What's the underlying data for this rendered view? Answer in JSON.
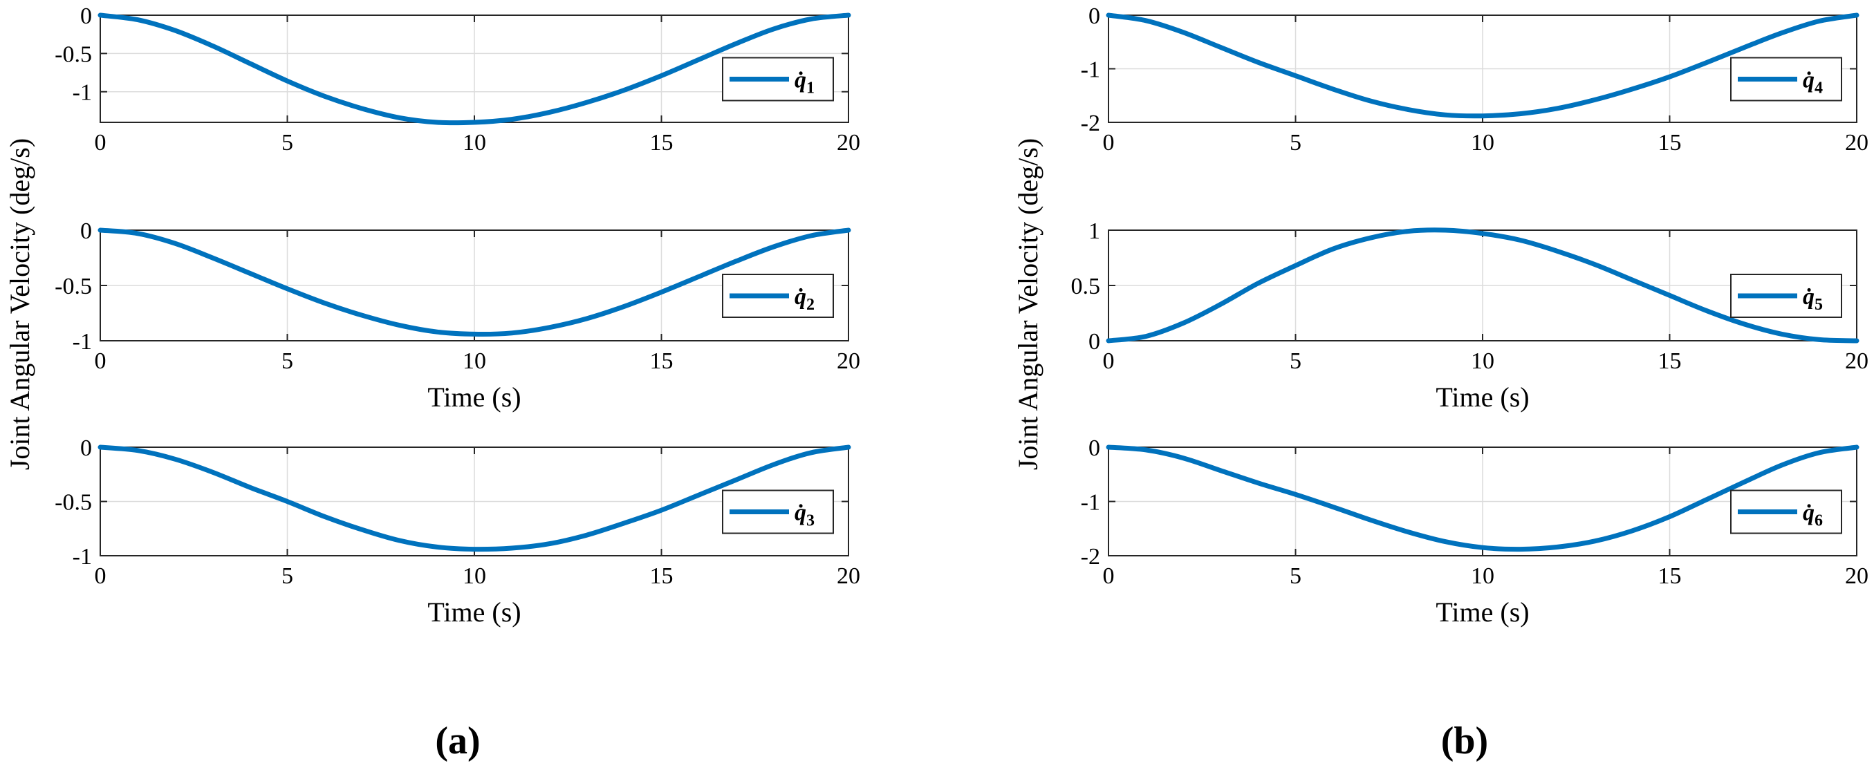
{
  "panel_labels": [
    "(a)",
    "(b)"
  ],
  "shared_ylabels": [
    "Joint Angular Velocity (deg/s)",
    "Joint Angular Velocity (deg/s)"
  ],
  "line_color": "#0072bd",
  "chart_data": [
    {
      "type": "line",
      "panel": "(a)",
      "legend_label": "q̇",
      "legend_sub": "1",
      "legend": "right",
      "xlabel": "",
      "xlim": [
        0,
        20
      ],
      "ylim": [
        -1.4,
        0
      ],
      "xticks": [
        0,
        5,
        10,
        15,
        20
      ],
      "yticks": [
        0,
        -0.5,
        -1
      ],
      "grid": true,
      "x": [
        0,
        1,
        2,
        3,
        4,
        5,
        6,
        7,
        8,
        9,
        10,
        11,
        12,
        13,
        14,
        15,
        16,
        17,
        18,
        19,
        20
      ],
      "y": [
        0,
        -0.06,
        -0.2,
        -0.4,
        -0.63,
        -0.86,
        -1.06,
        -1.22,
        -1.34,
        -1.4,
        -1.4,
        -1.36,
        -1.27,
        -1.14,
        -0.98,
        -0.79,
        -0.58,
        -0.37,
        -0.18,
        -0.05,
        0
      ]
    },
    {
      "type": "line",
      "panel": "(a)",
      "legend_label": "q̇",
      "legend_sub": "2",
      "legend": "right",
      "xlabel": "Time (s)",
      "xlim": [
        0,
        20
      ],
      "ylim": [
        -1,
        0
      ],
      "xticks": [
        0,
        5,
        10,
        15,
        20
      ],
      "yticks": [
        0,
        -0.5,
        -1
      ],
      "grid": true,
      "x": [
        0,
        1,
        2,
        3,
        4,
        5,
        6,
        7,
        8,
        9,
        10,
        11,
        12,
        13,
        14,
        15,
        16,
        17,
        18,
        19,
        20
      ],
      "y": [
        0,
        -0.03,
        -0.12,
        -0.25,
        -0.39,
        -0.53,
        -0.66,
        -0.77,
        -0.86,
        -0.92,
        -0.94,
        -0.93,
        -0.88,
        -0.8,
        -0.69,
        -0.56,
        -0.42,
        -0.28,
        -0.15,
        -0.05,
        0
      ]
    },
    {
      "type": "line",
      "panel": "(a)",
      "legend_label": "q̇",
      "legend_sub": "3",
      "legend": "right",
      "xlabel": "Time (s)",
      "xlim": [
        0,
        20
      ],
      "ylim": [
        -1,
        0
      ],
      "xticks": [
        0,
        5,
        10,
        15,
        20
      ],
      "yticks": [
        0,
        -0.5,
        -1
      ],
      "grid": true,
      "x": [
        0,
        1,
        2,
        3,
        4,
        5,
        6,
        7,
        8,
        9,
        10,
        11,
        12,
        13,
        14,
        15,
        16,
        17,
        18,
        19,
        20
      ],
      "y": [
        0,
        -0.03,
        -0.11,
        -0.23,
        -0.37,
        -0.5,
        -0.64,
        -0.76,
        -0.86,
        -0.92,
        -0.94,
        -0.93,
        -0.89,
        -0.81,
        -0.7,
        -0.58,
        -0.44,
        -0.3,
        -0.16,
        -0.05,
        0
      ]
    },
    {
      "type": "line",
      "panel": "(b)",
      "legend_label": "q̇",
      "legend_sub": "4",
      "legend": "right",
      "xlabel": "",
      "xlim": [
        0,
        20
      ],
      "ylim": [
        -2,
        0
      ],
      "xticks": [
        0,
        5,
        10,
        15,
        20
      ],
      "yticks": [
        0,
        -1,
        -2
      ],
      "grid": true,
      "x": [
        0,
        1,
        2,
        3,
        4,
        5,
        6,
        7,
        8,
        9,
        10,
        11,
        12,
        13,
        14,
        15,
        16,
        17,
        18,
        19,
        20
      ],
      "y": [
        0,
        -0.1,
        -0.32,
        -0.6,
        -0.88,
        -1.13,
        -1.38,
        -1.6,
        -1.76,
        -1.86,
        -1.88,
        -1.84,
        -1.74,
        -1.58,
        -1.38,
        -1.15,
        -0.88,
        -0.6,
        -0.33,
        -0.11,
        0
      ]
    },
    {
      "type": "line",
      "panel": "(b)",
      "legend_label": "q̇",
      "legend_sub": "5",
      "legend": "right",
      "xlabel": "Time (s)",
      "xlim": [
        0,
        20
      ],
      "ylim": [
        0,
        1
      ],
      "xticks": [
        0,
        5,
        10,
        15,
        20
      ],
      "yticks": [
        1,
        0.5,
        0
      ],
      "grid": true,
      "x": [
        0,
        1,
        2,
        3,
        4,
        5,
        6,
        7,
        8,
        9,
        10,
        11,
        12,
        13,
        14,
        15,
        16,
        17,
        18,
        19,
        20
      ],
      "y": [
        0,
        0.04,
        0.16,
        0.33,
        0.52,
        0.68,
        0.83,
        0.93,
        0.99,
        1.0,
        0.97,
        0.91,
        0.81,
        0.69,
        0.55,
        0.41,
        0.27,
        0.15,
        0.06,
        0.01,
        0
      ]
    },
    {
      "type": "line",
      "panel": "(b)",
      "legend_label": "q̇",
      "legend_sub": "6",
      "legend": "right",
      "xlabel": "Time (s)",
      "xlim": [
        0,
        20
      ],
      "ylim": [
        -2,
        0
      ],
      "xticks": [
        0,
        5,
        10,
        15,
        20
      ],
      "yticks": [
        0,
        -1,
        -2
      ],
      "grid": true,
      "x": [
        0,
        1,
        2,
        3,
        4,
        5,
        6,
        7,
        8,
        9,
        10,
        11,
        12,
        13,
        14,
        15,
        16,
        17,
        18,
        19,
        20
      ],
      "y": [
        0,
        -0.05,
        -0.2,
        -0.43,
        -0.66,
        -0.87,
        -1.1,
        -1.34,
        -1.56,
        -1.74,
        -1.85,
        -1.88,
        -1.84,
        -1.73,
        -1.54,
        -1.28,
        -0.96,
        -0.64,
        -0.33,
        -0.1,
        0
      ]
    }
  ]
}
